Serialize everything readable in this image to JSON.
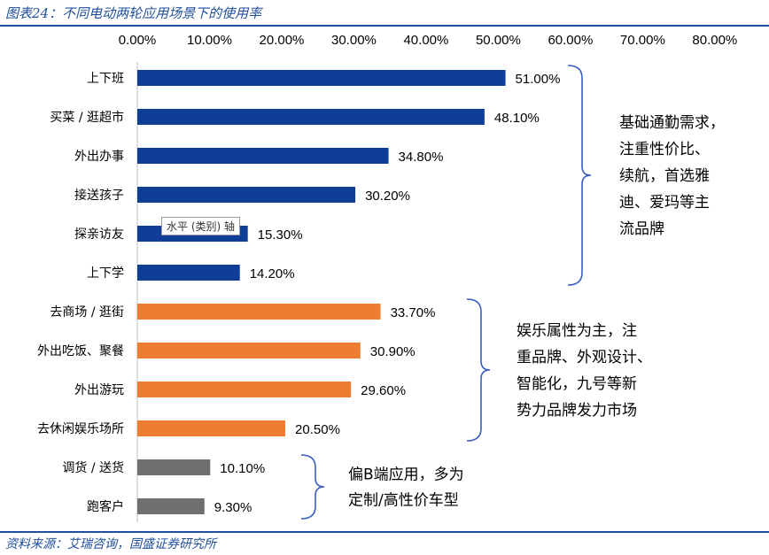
{
  "title": "图表24：不同电动两轮应用场景下的使用率",
  "source": "资料来源：艾瑞咨询，国盛证券研究所",
  "tooltip": "水平 (类别) 轴",
  "colors": {
    "blue": "#0f3d97",
    "orange": "#ed7d31",
    "gray": "#6f6f6f",
    "bracket": "#3a5ec0"
  },
  "chart_data": {
    "type": "bar",
    "orientation": "horizontal",
    "x_axis_position": "top",
    "xlim": [
      0,
      80
    ],
    "xticks": [
      "0.00%",
      "10.00%",
      "20.00%",
      "30.00%",
      "40.00%",
      "50.00%",
      "60.00%",
      "70.00%",
      "80.00%"
    ],
    "categories": [
      "上下班",
      "买菜 / 逛超市",
      "外出办事",
      "接送孩子",
      "探亲访友",
      "上下学",
      "去商场 / 逛街",
      "外出吃饭、聚餐",
      "外出游玩",
      "去休闲娱乐场所",
      "调货 / 送货",
      "跑客户"
    ],
    "values": [
      51.0,
      48.1,
      34.8,
      30.2,
      15.3,
      14.2,
      33.7,
      30.9,
      29.6,
      20.5,
      10.1,
      9.3
    ],
    "labels": [
      "51.00%",
      "48.10%",
      "34.80%",
      "30.20%",
      "15.30%",
      "14.20%",
      "33.70%",
      "30.90%",
      "29.60%",
      "20.50%",
      "10.10%",
      "9.30%"
    ],
    "groups": [
      "blue",
      "blue",
      "blue",
      "blue",
      "blue",
      "blue",
      "orange",
      "orange",
      "orange",
      "orange",
      "gray",
      "gray"
    ],
    "grid": false,
    "legend": "none",
    "annotations": [
      {
        "from": 0,
        "to": 5,
        "lines": [
          "基础通勤需求，",
          "注重性价比、",
          "续航，首选雅",
          "迪、爱玛等主",
          "流品牌"
        ]
      },
      {
        "from": 6,
        "to": 9,
        "lines": [
          "娱乐属性为主，注",
          "重品牌、外观设计、",
          "智能化，九号等新",
          "势力品牌发力市场"
        ]
      },
      {
        "from": 10,
        "to": 11,
        "lines": [
          "偏B端应用，多为",
          "定制/高性价车型"
        ]
      }
    ]
  }
}
